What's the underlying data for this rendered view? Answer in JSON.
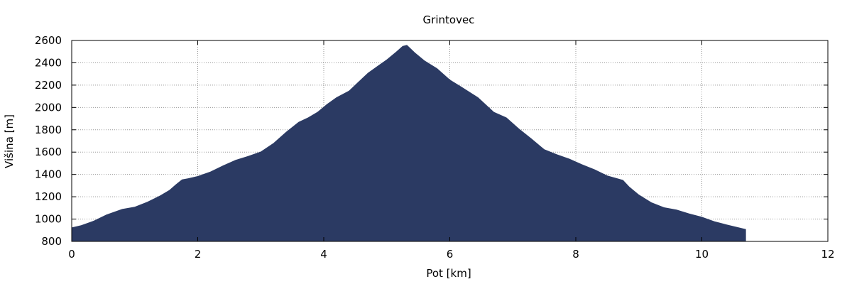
{
  "chart_data": {
    "type": "area",
    "title": "Grintovec",
    "xlabel": "Pot [km]",
    "ylabel": "Višina [m]",
    "xlim": [
      0,
      12
    ],
    "ylim": [
      800,
      2600
    ],
    "xticks": [
      0,
      2,
      4,
      6,
      8,
      10,
      12
    ],
    "yticks": [
      800,
      1000,
      1200,
      1400,
      1600,
      1800,
      2000,
      2200,
      2400,
      2600
    ],
    "grid": true,
    "fill_color": "#2b3a63",
    "series": [
      {
        "x": [
          0,
          0.15,
          0.35,
          0.55,
          0.8,
          1.0,
          1.2,
          1.4,
          1.55,
          1.65,
          1.75,
          1.85,
          2.0,
          2.2,
          2.4,
          2.6,
          2.8,
          3.0,
          3.2,
          3.4,
          3.6,
          3.75,
          3.9,
          4.05,
          4.2,
          4.4,
          4.55,
          4.7,
          4.85,
          5.0,
          5.15,
          5.25,
          5.32,
          5.45,
          5.6,
          5.8,
          6.0,
          6.2,
          6.45,
          6.7,
          6.9,
          7.1,
          7.3,
          7.5,
          7.7,
          7.9,
          8.1,
          8.3,
          8.5,
          8.75,
          8.85,
          9.0,
          9.2,
          9.4,
          9.6,
          9.8,
          10.0,
          10.2,
          10.4,
          10.7
        ],
        "y": [
          925,
          945,
          985,
          1040,
          1090,
          1110,
          1155,
          1210,
          1260,
          1310,
          1355,
          1365,
          1385,
          1425,
          1480,
          1530,
          1565,
          1605,
          1680,
          1780,
          1870,
          1910,
          1960,
          2030,
          2090,
          2150,
          2230,
          2310,
          2370,
          2430,
          2500,
          2550,
          2560,
          2490,
          2420,
          2350,
          2250,
          2180,
          2090,
          1960,
          1910,
          1810,
          1720,
          1625,
          1580,
          1540,
          1490,
          1445,
          1390,
          1350,
          1290,
          1220,
          1150,
          1105,
          1085,
          1050,
          1020,
          980,
          950,
          910
        ]
      }
    ]
  }
}
